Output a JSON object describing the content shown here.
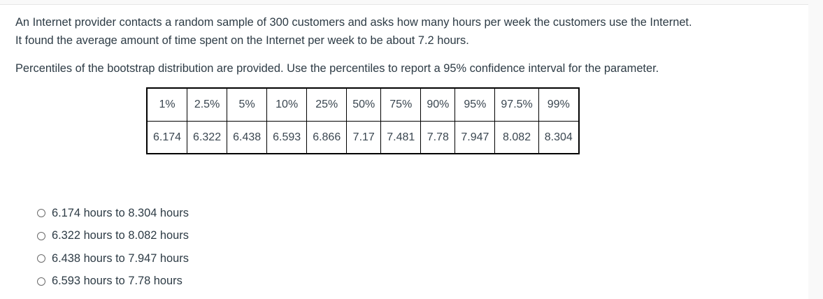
{
  "question": {
    "line1": "An Internet provider contacts a random sample of 300 customers and asks how many hours per week the customers use the Internet.",
    "line2": "It found the average amount of time spent on the Internet per week to be about 7.2 hours.",
    "instruction": "Percentiles of the bootstrap distribution are provided. Use the percentiles to report a 95% confidence interval for the parameter."
  },
  "table": {
    "headers": [
      "1%",
      "2.5%",
      "5%",
      "10%",
      "25%",
      "50%",
      "75%",
      "90%",
      "95%",
      "97.5%",
      "99%"
    ],
    "values": [
      "6.174",
      "6.322",
      "6.438",
      "6.593",
      "6.866",
      "7.17",
      "7.481",
      "7.78",
      "7.947",
      "8.082",
      "8.304"
    ]
  },
  "options": [
    {
      "label": "6.174 hours to 8.304 hours",
      "selected": false
    },
    {
      "label": "6.322 hours to 8.082 hours",
      "selected": false
    },
    {
      "label": "6.438 hours to 7.947 hours",
      "selected": false
    },
    {
      "label": "6.593 hours to 7.78 hours",
      "selected": false
    }
  ]
}
